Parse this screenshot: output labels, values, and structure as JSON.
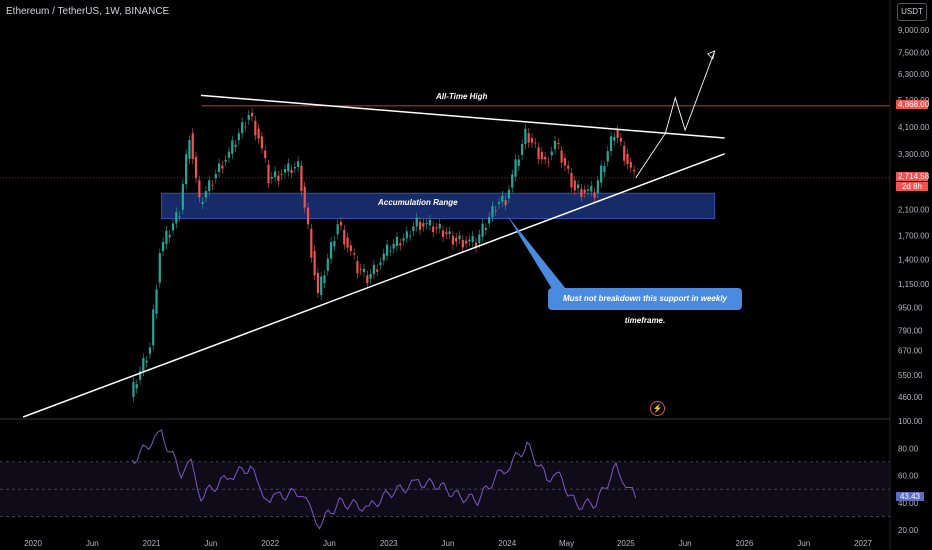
{
  "header": {
    "title": "Ethereum / TetherUS, 1W, BINANCE"
  },
  "currency_label": "USDT",
  "colors": {
    "background": "#000000",
    "candle_up": "#26a69a",
    "candle_down": "#ef5350",
    "range_fill": "#1e3a8a",
    "ath_line": "#ef5350",
    "rsi_line": "#7e57c2",
    "callout": "#4a8be0"
  },
  "annotations": {
    "ath_label": "All-Time High",
    "range_label": "Accumulation Range",
    "callout_text": "Must not breakdown this support in weekly timeframe."
  },
  "price_tags": {
    "ath_price": "4,868.00",
    "current_price": "2,714.58",
    "countdown": "2d 8h",
    "rsi_value": "43.43"
  },
  "chart_data": [
    {
      "type": "line",
      "title": "Ethereum / TetherUS, 1W, BINANCE",
      "scale": "log",
      "y_ticks": [
        "9,000.00",
        "7,500.00",
        "6,300.00",
        "5,100.00",
        "4,100.00",
        "3,300.00",
        "2,100.00",
        "1,700.00",
        "1,400.00",
        "1,150.00",
        "950.00",
        "790.00",
        "670.00",
        "550.00",
        "460.00"
      ],
      "y_tick_values": [
        9000,
        7500,
        6300,
        5100,
        4100,
        3300,
        2100,
        1700,
        1400,
        1150,
        950,
        790,
        670,
        550,
        460
      ],
      "x_ticks": [
        "2020",
        "Jun",
        "2021",
        "Jun",
        "2022",
        "Jun",
        "2023",
        "Jun",
        "2024",
        "May",
        "2025",
        "Jun",
        "2026",
        "Jun",
        "2027"
      ],
      "series": [
        {
          "x": [
            "2020-11",
            "2021-01",
            "2021-02",
            "2021-04",
            "2021-05",
            "2021-06",
            "2021-08",
            "2021-09",
            "2021-11",
            "2021-12",
            "2022-01",
            "2022-02",
            "2022-04",
            "2022-05",
            "2022-06",
            "2022-08",
            "2022-10",
            "2022-11",
            "2023-01",
            "2023-03",
            "2023-04",
            "2023-06",
            "2023-08",
            "2023-10",
            "2023-12",
            "2024-01",
            "2024-03",
            "2024-05",
            "2024-06",
            "2024-08",
            "2024-10",
            "2024-12",
            "2025-01",
            "2025-02"
          ],
          "y": [
            460,
            700,
            1500,
            2100,
            3900,
            2200,
            3000,
            3300,
            4600,
            3800,
            2700,
            2800,
            3000,
            1800,
            1050,
            1900,
            1300,
            1200,
            1500,
            1700,
            1900,
            1800,
            1650,
            1600,
            2200,
            2300,
            3900,
            3100,
            3600,
            2500,
            2400,
            4000,
            3300,
            2715
          ]
        }
      ],
      "levels": {
        "all_time_high": 4868,
        "current": 2714.58,
        "range_low": 1950,
        "range_high": 2400
      }
    },
    {
      "type": "line",
      "title": "",
      "y_ticks": [
        "100.00",
        "80.00",
        "60.00",
        "40.00",
        "20.00"
      ],
      "y_tick_values": [
        100,
        80,
        60,
        40,
        20
      ],
      "bands": [
        70,
        30
      ],
      "series": [
        {
          "x": [
            "2020-11",
            "2021-01",
            "2021-02",
            "2021-04",
            "2021-05",
            "2021-06",
            "2021-08",
            "2021-09",
            "2021-11",
            "2021-12",
            "2022-01",
            "2022-02",
            "2022-04",
            "2022-05",
            "2022-06",
            "2022-08",
            "2022-10",
            "2022-11",
            "2023-01",
            "2023-03",
            "2023-04",
            "2023-06",
            "2023-08",
            "2023-10",
            "2023-12",
            "2024-01",
            "2024-03",
            "2024-05",
            "2024-06",
            "2024-08",
            "2024-10",
            "2024-12",
            "2025-01",
            "2025-02"
          ],
          "y": [
            70,
            85,
            90,
            62,
            68,
            45,
            55,
            60,
            66,
            50,
            42,
            45,
            48,
            35,
            25,
            40,
            38,
            36,
            47,
            52,
            55,
            53,
            45,
            42,
            60,
            66,
            82,
            58,
            62,
            38,
            40,
            66,
            55,
            43.43
          ]
        }
      ]
    }
  ]
}
